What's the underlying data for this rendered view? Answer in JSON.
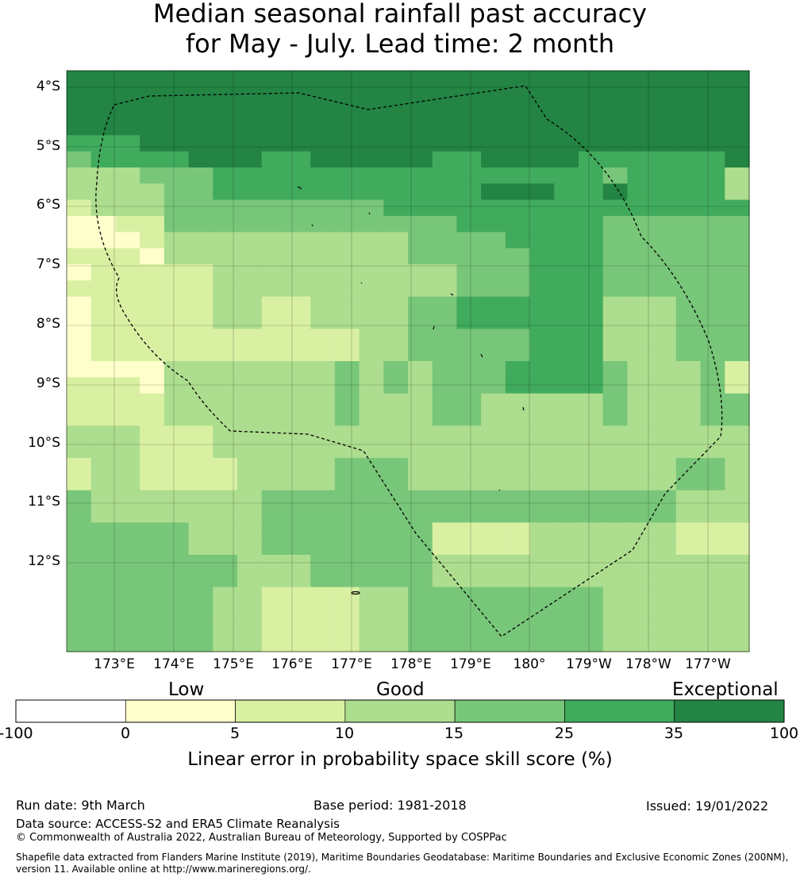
{
  "title": {
    "line1": "Median seasonal rainfall past accuracy",
    "line2": "for May - July. Lead time: 2 month"
  },
  "map": {
    "lat_labels": [
      "4°S",
      "5°S",
      "6°S",
      "7°S",
      "8°S",
      "9°S",
      "10°S",
      "11°S",
      "12°S"
    ],
    "lon_labels": [
      "173°E",
      "174°E",
      "175°E",
      "176°E",
      "177°E",
      "178°E",
      "179°E",
      "180°",
      "179°W",
      "178°W",
      "177°W"
    ],
    "grid_rows": [
      "6666666666666666666666666666",
      "6666666666666666666666666666",
      "6666666666666666666666666666",
      "6666666666666666666666666666",
      "5556666666666666666666666666",
      "4555566655666665566665555556",
      "3334445555555555555555455553",
      "3333445555555555566655655553",
      "2333444444444555555555555555",
      "1122444444444444555555444444",
      "1112333333333344445555444444",
      "2221333333333344444555444444",
      "1222223333333333444555444444",
      "2222223333333333444555444444",
      "1222223322333344555555333444",
      "1222223322333344555555333444",
      "1222222222223344444555333444",
      "1222222222223344444555333444",
      "1111333333343434445555433342",
      "2221333333343434445555433342",
      "2222333333343334433333433344",
      "2222333333343334433333433344",
      "3332223333333333333333333333",
      "3332223333333333333333333333",
      "2332222333344433333333333443",
      "2332222333344433333333333443",
      "4333333344444444444444444333",
      "4333333344444444444444444333",
      "4444433344444442222333333222",
      "4444433344444442222333333222",
      "4444444333444443333333333333",
      "4444444333444443333333333333",
      "4444443322223344444444333333",
      "4444443322223344444444333333",
      "4444443322223344444444333333",
      "4444443322223344444444333333"
    ],
    "colors": [
      "#ffffff",
      "#ffffcc",
      "#d9f0a3",
      "#addd8e",
      "#78c679",
      "#41ab5d",
      "#238443"
    ]
  },
  "legend": {
    "categories": [
      "Low",
      "Good",
      "Exceptional"
    ],
    "ticks": [
      "-100",
      "0",
      "5",
      "10",
      "15",
      "25",
      "35",
      "100"
    ],
    "label": "Linear error in probability space skill score (%)"
  },
  "footer": {
    "run_date": "Run date: 9th March",
    "base_period": "Base period: 1981-2018",
    "issued": "Issued: 19/01/2022",
    "data_source": "Data source: ACCESS-S2 and ERA5 Climate Reanalysis",
    "copyright": "© Commonwealth of Australia 2022, Australian Bureau of Meteorology, Supported by COSPPac",
    "shapefile_line1": "Shapefile data extracted from Flanders Marine Institute (2019), Maritime Boundaries Geodatabase: Maritime Boundaries and Exclusive Economic Zones (200NM),",
    "shapefile_line2": "version 11. Available online at http://www.marineregions.org/."
  }
}
